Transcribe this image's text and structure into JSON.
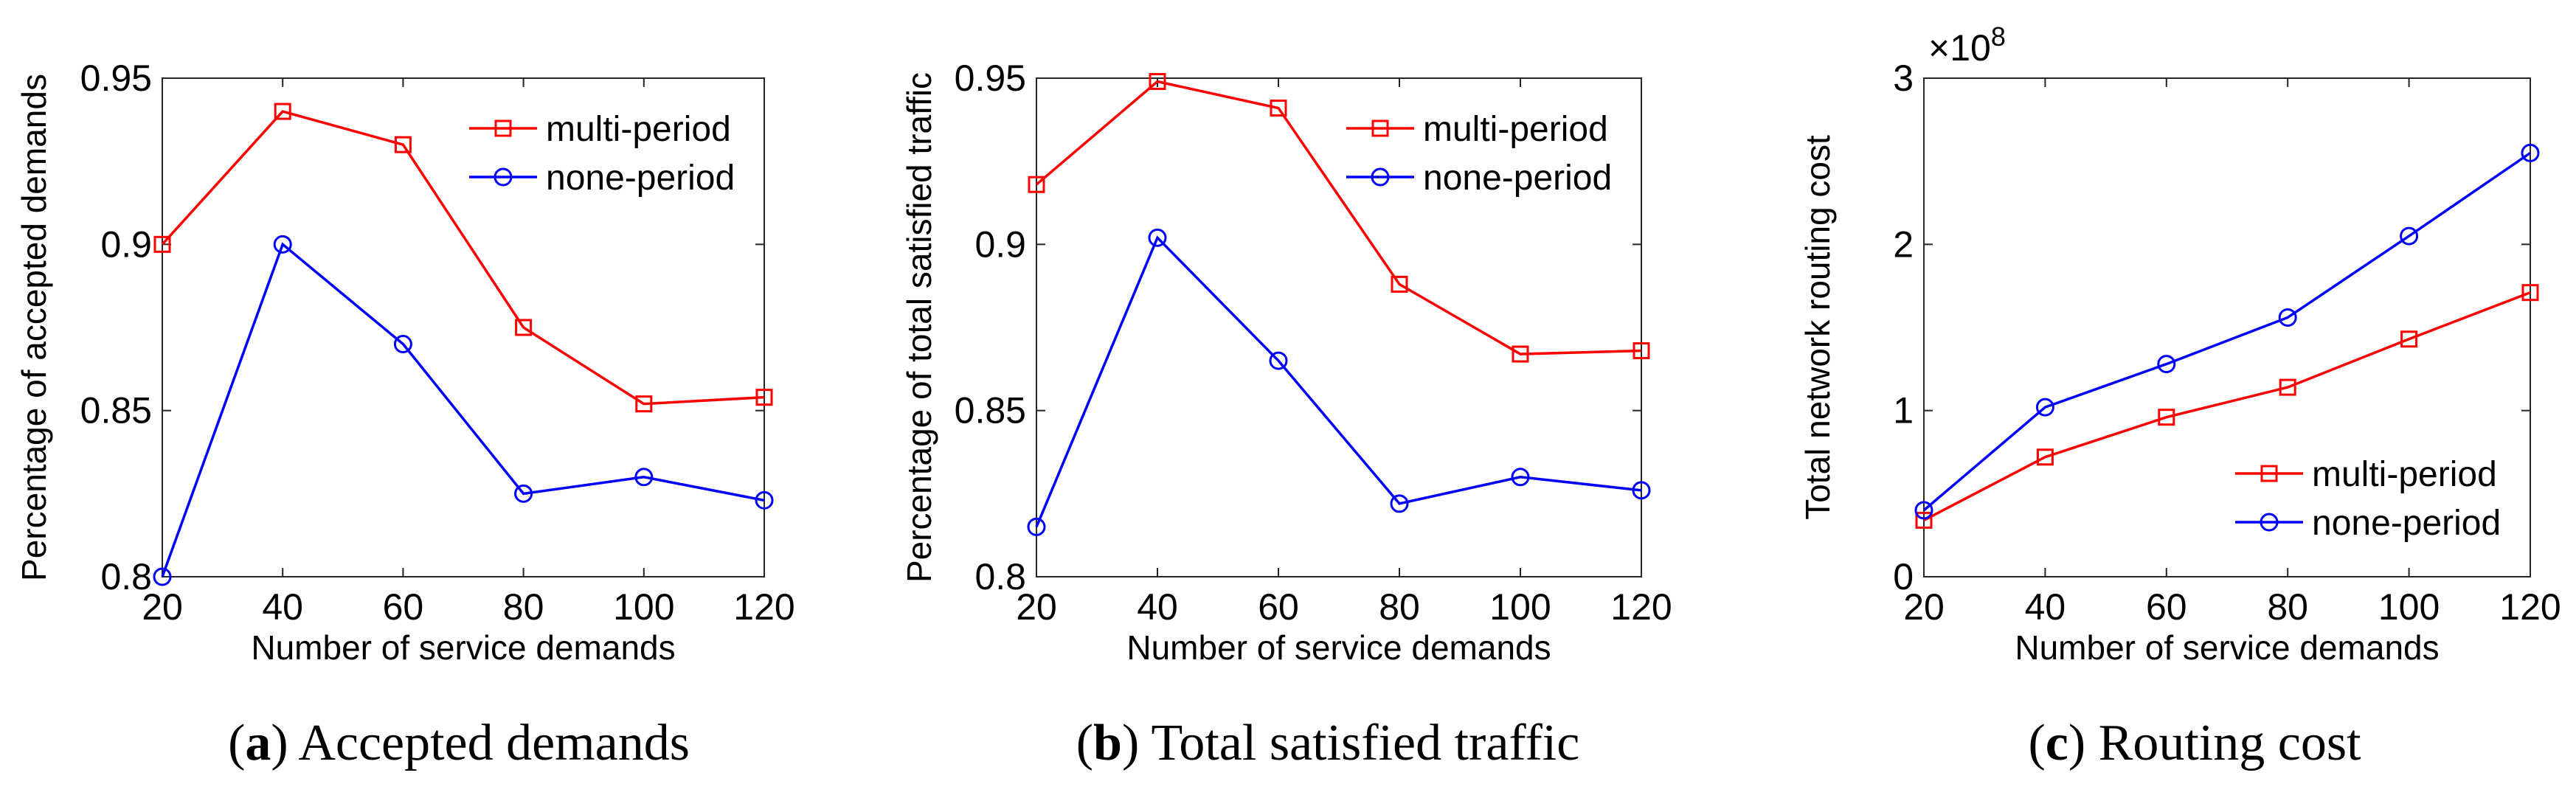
{
  "chart_data": [
    {
      "type": "line",
      "panel": "a",
      "caption_letter": "a",
      "caption_text": "Accepted demands",
      "xlabel": "Number of service demands",
      "ylabel": "Percentage of accepted demands",
      "x": [
        20,
        40,
        60,
        80,
        100,
        120
      ],
      "xlim": [
        20,
        120
      ],
      "ylim": [
        0.8,
        0.95
      ],
      "yticks": [
        0.8,
        0.85,
        0.9,
        0.95
      ],
      "ytick_labels": [
        "0.8",
        "0.85",
        "0.9",
        "0.95"
      ],
      "exponent_label": "",
      "legend_position": "top-right",
      "series": [
        {
          "name": "multi-period",
          "color": "#ff0000",
          "marker": "square",
          "values": [
            0.9,
            0.94,
            0.93,
            0.875,
            0.852,
            0.854
          ]
        },
        {
          "name": "none-period",
          "color": "#0000ff",
          "marker": "circle",
          "values": [
            0.8,
            0.9,
            0.87,
            0.825,
            0.83,
            0.823
          ]
        }
      ]
    },
    {
      "type": "line",
      "panel": "b",
      "caption_letter": "b",
      "caption_text": "Total satisfied traffic",
      "xlabel": "Number of service demands",
      "ylabel": "Percentage of total satisfied traffic",
      "x": [
        20,
        40,
        60,
        80,
        100,
        120
      ],
      "xlim": [
        20,
        120
      ],
      "ylim": [
        0.8,
        0.95
      ],
      "yticks": [
        0.8,
        0.85,
        0.9,
        0.95
      ],
      "ytick_labels": [
        "0.8",
        "0.85",
        "0.9",
        "0.95"
      ],
      "exponent_label": "",
      "legend_position": "top-right",
      "series": [
        {
          "name": "multi-period",
          "color": "#ff0000",
          "marker": "square",
          "values": [
            0.918,
            0.949,
            0.941,
            0.888,
            0.867,
            0.868
          ]
        },
        {
          "name": "none-period",
          "color": "#0000ff",
          "marker": "circle",
          "values": [
            0.815,
            0.902,
            0.865,
            0.822,
            0.83,
            0.826
          ]
        }
      ]
    },
    {
      "type": "line",
      "panel": "c",
      "caption_letter": "c",
      "caption_text": "Routing cost",
      "xlabel": "Number of service demands",
      "ylabel": "Total network routing cost",
      "x": [
        20,
        40,
        60,
        80,
        100,
        120
      ],
      "xlim": [
        20,
        120
      ],
      "ylim": [
        0,
        3
      ],
      "yticks": [
        0,
        1,
        2,
        3
      ],
      "ytick_labels": [
        "0",
        "1",
        "2",
        "3"
      ],
      "exponent_label": "×10",
      "exponent_power": "8",
      "legend_position": "bottom-right",
      "series": [
        {
          "name": "multi-period",
          "color": "#ff0000",
          "marker": "square",
          "values": [
            0.34,
            0.72,
            0.96,
            1.14,
            1.43,
            1.71
          ]
        },
        {
          "name": "none-period",
          "color": "#0000ff",
          "marker": "circle",
          "values": [
            0.4,
            1.02,
            1.28,
            1.56,
            2.05,
            2.55
          ]
        }
      ]
    }
  ]
}
